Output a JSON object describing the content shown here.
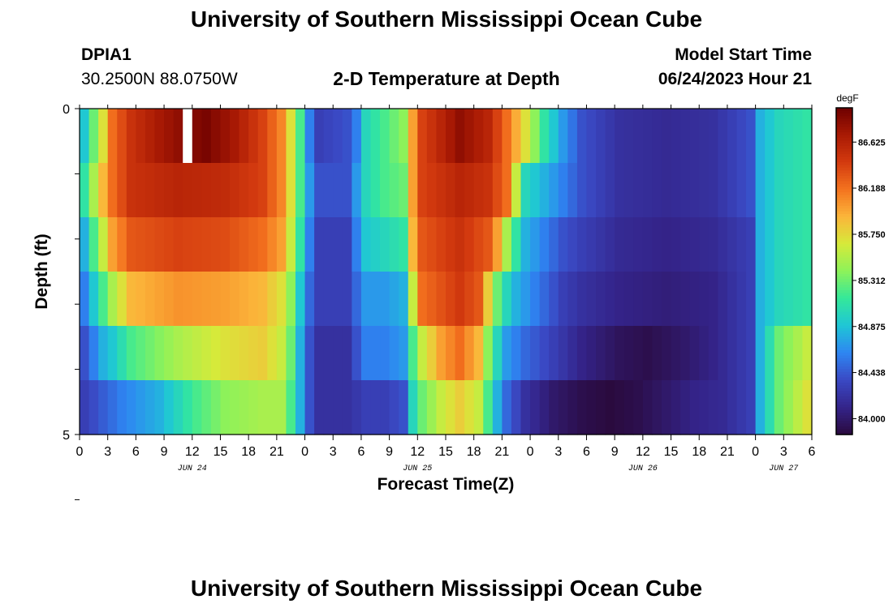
{
  "header": {
    "title": "University of Southern Mississippi Ocean Cube",
    "station_id": "DPIA1",
    "station_coords": "30.2500N  88.0750W",
    "plot_title": "2-D Temperature at Depth",
    "model_start_label": "Model Start Time",
    "model_start_value": "06/24/2023 Hour 21"
  },
  "footer": {
    "title": "University of Southern Mississippi Ocean Cube"
  },
  "colors": {
    "colormap": [
      "#2a0a3e",
      "#34248a",
      "#3a49c4",
      "#2e86f2",
      "#1fc6d6",
      "#34e89a",
      "#8df25a",
      "#d6ea3a",
      "#fbb53a",
      "#f4731f",
      "#d33a0f",
      "#a91a04",
      "#6e0000"
    ]
  },
  "chart_data": {
    "type": "heatmap",
    "title": "2-D Temperature at Depth",
    "xlabel": "Forecast Time(Z)",
    "ylabel": "Depth (ft)",
    "units": "degF",
    "vmin": 83.85,
    "vmax": 86.95,
    "y_tick_labels": [
      "0",
      "5"
    ],
    "ylim": [
      0,
      5
    ],
    "depth_layers": [
      0,
      1,
      2,
      3,
      4,
      5
    ],
    "x_hours": 78,
    "x_tick_labels": [
      "0",
      "3",
      "6",
      "9",
      "12",
      "15",
      "18",
      "21",
      "0",
      "3",
      "6",
      "9",
      "12",
      "15",
      "18",
      "21",
      "0",
      "3",
      "6",
      "9",
      "12",
      "15",
      "18",
      "21",
      "0",
      "3",
      "6"
    ],
    "date_labels": [
      {
        "label": "JUN 24",
        "hour": 12
      },
      {
        "label": "JUN 25",
        "hour": 36
      },
      {
        "label": "JUN 26",
        "hour": 60
      },
      {
        "label": "JUN 27",
        "hour": 75
      }
    ],
    "colorbar_ticks": [
      "84.000",
      "84.438",
      "84.875",
      "85.312",
      "85.750",
      "86.188",
      "86.625"
    ],
    "colorbar_tick_values": [
      84.0,
      84.438,
      84.875,
      85.312,
      85.75,
      86.188,
      86.625
    ],
    "missing_cell": {
      "hour": 11,
      "layer": 0
    },
    "layer_profiles": [
      [
        [
          0,
          84.9
        ],
        [
          1,
          85.3
        ],
        [
          2,
          85.7
        ],
        [
          3,
          86.2
        ],
        [
          5,
          86.5
        ],
        [
          8,
          86.7
        ],
        [
          10,
          86.8
        ],
        [
          13,
          86.9
        ],
        [
          16,
          86.7
        ],
        [
          19,
          86.4
        ],
        [
          21,
          86.1
        ],
        [
          22,
          85.7
        ],
        [
          23,
          85.2
        ],
        [
          24,
          84.6
        ],
        [
          25,
          84.3
        ],
        [
          28,
          84.4
        ],
        [
          29,
          84.6
        ],
        [
          30,
          85.0
        ],
        [
          32,
          85.2
        ],
        [
          34,
          85.4
        ],
        [
          35,
          86.0
        ],
        [
          36,
          86.4
        ],
        [
          40,
          86.8
        ],
        [
          43,
          86.6
        ],
        [
          45,
          86.2
        ],
        [
          47,
          85.7
        ],
        [
          49,
          85.1
        ],
        [
          51,
          84.7
        ],
        [
          53,
          84.4
        ],
        [
          57,
          84.2
        ],
        [
          62,
          84.15
        ],
        [
          67,
          84.2
        ],
        [
          71,
          84.4
        ],
        [
          72,
          84.8
        ],
        [
          74,
          85.0
        ],
        [
          77,
          85.1
        ]
      ],
      [
        [
          0,
          85.1
        ],
        [
          1,
          85.5
        ],
        [
          2,
          85.9
        ],
        [
          3,
          86.2
        ],
        [
          5,
          86.5
        ],
        [
          10,
          86.6
        ],
        [
          15,
          86.55
        ],
        [
          19,
          86.4
        ],
        [
          21,
          86.1
        ],
        [
          22,
          85.7
        ],
        [
          23,
          85.2
        ],
        [
          24,
          84.7
        ],
        [
          25,
          84.4
        ],
        [
          28,
          84.4
        ],
        [
          29,
          84.7
        ],
        [
          30,
          85.0
        ],
        [
          32,
          85.2
        ],
        [
          34,
          85.3
        ],
        [
          35,
          86.0
        ],
        [
          36,
          86.4
        ],
        [
          40,
          86.6
        ],
        [
          43,
          86.5
        ],
        [
          45,
          86.2
        ],
        [
          46,
          85.6
        ],
        [
          47,
          85.0
        ],
        [
          49,
          84.8
        ],
        [
          51,
          84.6
        ],
        [
          53,
          84.4
        ],
        [
          57,
          84.2
        ],
        [
          62,
          84.15
        ],
        [
          67,
          84.2
        ],
        [
          71,
          84.4
        ],
        [
          72,
          84.8
        ],
        [
          74,
          85.0
        ],
        [
          77,
          85.1
        ]
      ],
      [
        [
          0,
          84.8
        ],
        [
          1,
          85.2
        ],
        [
          2,
          85.6
        ],
        [
          3,
          86.0
        ],
        [
          5,
          86.3
        ],
        [
          10,
          86.4
        ],
        [
          15,
          86.35
        ],
        [
          19,
          86.2
        ],
        [
          21,
          86.0
        ],
        [
          22,
          85.6
        ],
        [
          23,
          85.1
        ],
        [
          24,
          84.6
        ],
        [
          25,
          84.3
        ],
        [
          28,
          84.3
        ],
        [
          29,
          84.6
        ],
        [
          30,
          84.9
        ],
        [
          32,
          85.0
        ],
        [
          34,
          85.1
        ],
        [
          35,
          85.9
        ],
        [
          36,
          86.3
        ],
        [
          40,
          86.5
        ],
        [
          43,
          86.3
        ],
        [
          44,
          86.0
        ],
        [
          45,
          85.5
        ],
        [
          46,
          85.1
        ],
        [
          47,
          84.8
        ],
        [
          49,
          84.6
        ],
        [
          51,
          84.4
        ],
        [
          53,
          84.3
        ],
        [
          57,
          84.15
        ],
        [
          62,
          84.1
        ],
        [
          67,
          84.15
        ],
        [
          71,
          84.3
        ],
        [
          72,
          84.8
        ],
        [
          74,
          85.0
        ],
        [
          77,
          85.1
        ]
      ],
      [
        [
          0,
          84.6
        ],
        [
          1,
          84.9
        ],
        [
          2,
          85.2
        ],
        [
          3,
          85.5
        ],
        [
          5,
          85.9
        ],
        [
          10,
          86.05
        ],
        [
          15,
          86.0
        ],
        [
          19,
          85.9
        ],
        [
          21,
          85.7
        ],
        [
          22,
          85.4
        ],
        [
          23,
          84.9
        ],
        [
          24,
          84.5
        ],
        [
          25,
          84.3
        ],
        [
          28,
          84.3
        ],
        [
          29,
          84.5
        ],
        [
          30,
          84.7
        ],
        [
          32,
          84.7
        ],
        [
          34,
          84.8
        ],
        [
          35,
          85.6
        ],
        [
          36,
          86.2
        ],
        [
          40,
          86.45
        ],
        [
          42,
          86.3
        ],
        [
          43,
          85.8
        ],
        [
          44,
          85.3
        ],
        [
          45,
          85.0
        ],
        [
          46,
          84.8
        ],
        [
          49,
          84.5
        ],
        [
          51,
          84.3
        ],
        [
          53,
          84.2
        ],
        [
          57,
          84.1
        ],
        [
          62,
          84.05
        ],
        [
          67,
          84.1
        ],
        [
          71,
          84.3
        ],
        [
          72,
          84.8
        ],
        [
          74,
          85.0
        ],
        [
          77,
          85.1
        ]
      ],
      [
        [
          0,
          84.4
        ],
        [
          1,
          84.6
        ],
        [
          2,
          84.8
        ],
        [
          3,
          84.9
        ],
        [
          5,
          85.2
        ],
        [
          10,
          85.5
        ],
        [
          15,
          85.7
        ],
        [
          19,
          85.8
        ],
        [
          21,
          85.6
        ],
        [
          22,
          85.3
        ],
        [
          23,
          84.8
        ],
        [
          24,
          84.4
        ],
        [
          25,
          84.2
        ],
        [
          28,
          84.2
        ],
        [
          29,
          84.4
        ],
        [
          30,
          84.6
        ],
        [
          32,
          84.6
        ],
        [
          34,
          84.7
        ],
        [
          35,
          85.2
        ],
        [
          36,
          85.6
        ],
        [
          38,
          86.0
        ],
        [
          40,
          86.2
        ],
        [
          42,
          85.9
        ],
        [
          43,
          85.4
        ],
        [
          44,
          85.0
        ],
        [
          45,
          84.7
        ],
        [
          47,
          84.5
        ],
        [
          50,
          84.3
        ],
        [
          53,
          84.1
        ],
        [
          57,
          83.95
        ],
        [
          60,
          83.9
        ],
        [
          64,
          84.0
        ],
        [
          67,
          84.1
        ],
        [
          71,
          84.3
        ],
        [
          72,
          84.8
        ],
        [
          74,
          85.3
        ],
        [
          77,
          85.6
        ]
      ],
      [
        [
          0,
          84.3
        ],
        [
          2,
          84.45
        ],
        [
          4,
          84.6
        ],
        [
          6,
          84.7
        ],
        [
          8,
          84.8
        ],
        [
          10,
          85.0
        ],
        [
          12,
          85.2
        ],
        [
          15,
          85.4
        ],
        [
          19,
          85.5
        ],
        [
          21,
          85.5
        ],
        [
          22,
          85.2
        ],
        [
          23,
          84.8
        ],
        [
          24,
          84.4
        ],
        [
          25,
          84.2
        ],
        [
          28,
          84.2
        ],
        [
          30,
          84.3
        ],
        [
          32,
          84.3
        ],
        [
          34,
          84.4
        ],
        [
          35,
          85.0
        ],
        [
          36,
          85.3
        ],
        [
          38,
          85.6
        ],
        [
          40,
          85.8
        ],
        [
          42,
          85.6
        ],
        [
          43,
          85.2
        ],
        [
          44,
          84.8
        ],
        [
          45,
          84.5
        ],
        [
          47,
          84.2
        ],
        [
          50,
          84.0
        ],
        [
          53,
          83.9
        ],
        [
          56,
          83.85
        ],
        [
          59,
          83.9
        ],
        [
          62,
          84.0
        ],
        [
          65,
          84.1
        ],
        [
          68,
          84.15
        ],
        [
          71,
          84.3
        ],
        [
          72,
          84.8
        ],
        [
          74,
          85.3
        ],
        [
          77,
          85.7
        ]
      ]
    ]
  }
}
